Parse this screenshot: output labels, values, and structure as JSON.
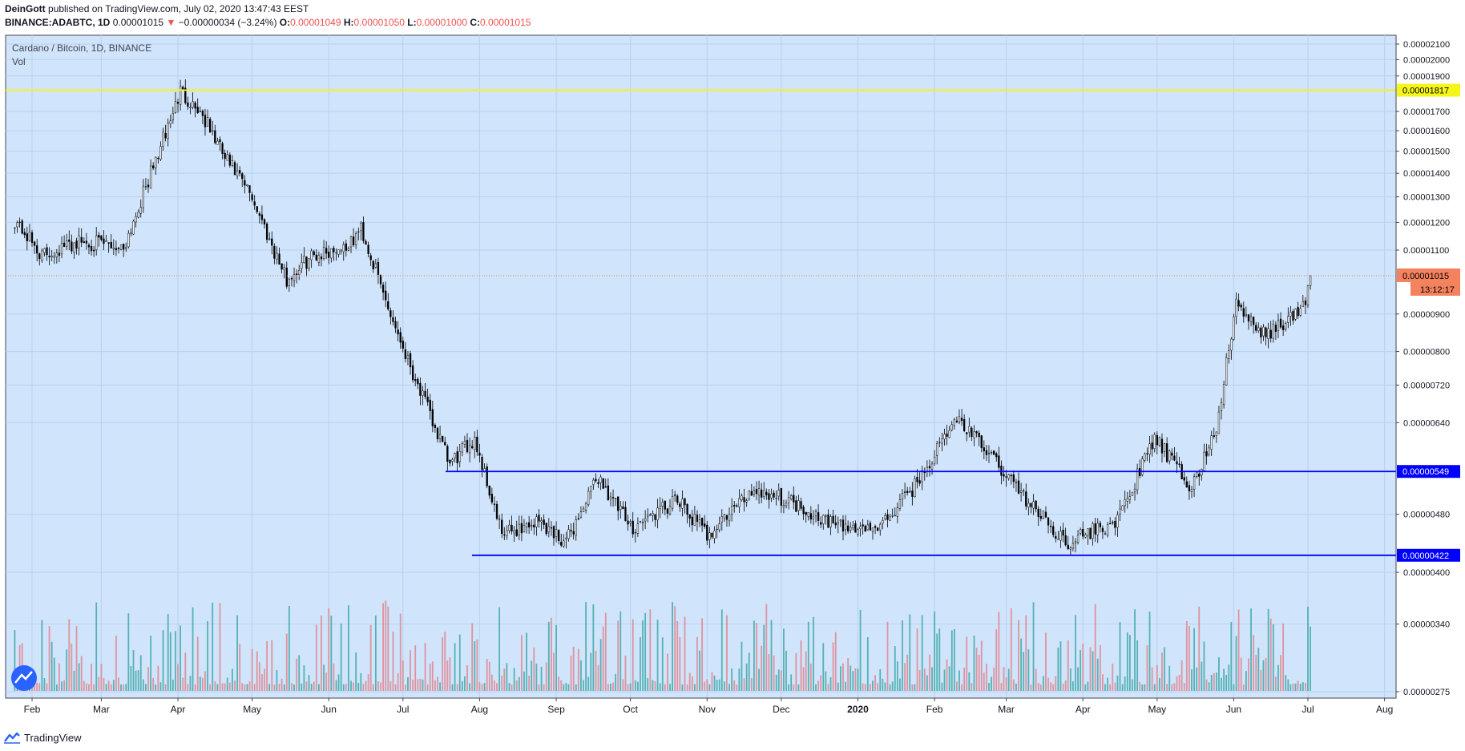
{
  "header": {
    "author": "DeinGott",
    "published_text": "published on TradingView.com, July 02, 2020 13:47:43 EEST",
    "symbol": "BINANCE:ADABTC, 1D",
    "last": "0.00001015",
    "change_arrow": "▼",
    "change": "−0.00000034 (−3.24%)",
    "o_label": "O:",
    "o_value": "0.00001049",
    "h_label": "H:",
    "h_value": "0.00001050",
    "l_label": "L:",
    "l_value": "0.00001000",
    "c_label": "C:",
    "c_value": "0.00001015"
  },
  "legend": {
    "title": "Cardano / Bitcoin, 1D, BINANCE",
    "volume_label": "Vol"
  },
  "footer": {
    "brand": "TradingView"
  },
  "colors": {
    "pane_bg": "#d0e4fb",
    "grid": "#b7d2f2",
    "candle_up": "#ffffff",
    "candle_down": "#000000",
    "vol_up": "#3fa9a6",
    "vol_down": "#e0868e",
    "yellow_line": "#f5f51a",
    "blue_line": "#0000ff",
    "last_price": "#f5825e"
  },
  "chart_data": {
    "type": "candlestick",
    "title": "Cardano / Bitcoin, 1D, BINANCE",
    "x_ticks": [
      "Feb",
      "Mar",
      "Apr",
      "May",
      "Jun",
      "Jul",
      "Aug",
      "Sep",
      "Oct",
      "Nov",
      "Dec",
      "2020",
      "Feb",
      "Mar",
      "Apr",
      "May",
      "Jun",
      "Jul",
      "Aug"
    ],
    "y_ticks": [
      "0.00002100",
      "0.00002000",
      "0.00001900",
      "0.00001700",
      "0.00001600",
      "0.00001500",
      "0.00001400",
      "0.00001300",
      "0.00001200",
      "0.00001100",
      "0.00000900",
      "0.00000800",
      "0.00000720",
      "0.00000640",
      "0.00000480",
      "0.00000400",
      "0.00000340",
      "0.00000275"
    ],
    "y_scale": "log",
    "y_range": [
      2.6e-06,
      2.2e-06
    ],
    "approx_close_path": [
      {
        "date": "2019-01-25",
        "close": 1.21e-05
      },
      {
        "date": "2019-02-05",
        "close": 1.08e-05
      },
      {
        "date": "2019-02-20",
        "close": 1.13e-05
      },
      {
        "date": "2019-03-10",
        "close": 1.11e-05
      },
      {
        "date": "2019-03-25",
        "close": 1.52e-05
      },
      {
        "date": "2019-04-02",
        "close": 1.81e-05
      },
      {
        "date": "2019-04-10",
        "close": 1.7e-05
      },
      {
        "date": "2019-04-20",
        "close": 1.47e-05
      },
      {
        "date": "2019-05-01",
        "close": 1.3e-05
      },
      {
        "date": "2019-05-15",
        "close": 1e-05
      },
      {
        "date": "2019-05-25",
        "close": 1.08e-05
      },
      {
        "date": "2019-06-10",
        "close": 1.12e-05
      },
      {
        "date": "2019-06-14",
        "close": 1.18e-05
      },
      {
        "date": "2019-06-25",
        "close": 9.2e-06
      },
      {
        "date": "2019-07-05",
        "close": 7.5e-06
      },
      {
        "date": "2019-07-20",
        "close": 5.6e-06
      },
      {
        "date": "2019-07-30",
        "close": 6.1e-06
      },
      {
        "date": "2019-08-10",
        "close": 4.5e-06
      },
      {
        "date": "2019-08-25",
        "close": 4.7e-06
      },
      {
        "date": "2019-09-05",
        "close": 4.4e-06
      },
      {
        "date": "2019-09-18",
        "close": 5.4e-06
      },
      {
        "date": "2019-10-01",
        "close": 4.6e-06
      },
      {
        "date": "2019-10-20",
        "close": 5e-06
      },
      {
        "date": "2019-11-01",
        "close": 4.5e-06
      },
      {
        "date": "2019-11-20",
        "close": 5.2e-06
      },
      {
        "date": "2019-12-05",
        "close": 5e-06
      },
      {
        "date": "2019-12-25",
        "close": 4.6e-06
      },
      {
        "date": "2020-01-10",
        "close": 4.6e-06
      },
      {
        "date": "2020-01-25",
        "close": 5.3e-06
      },
      {
        "date": "2020-02-10",
        "close": 6.5e-06
      },
      {
        "date": "2020-02-25",
        "close": 5.7e-06
      },
      {
        "date": "2020-03-12",
        "close": 4.9e-06
      },
      {
        "date": "2020-03-25",
        "close": 4.4e-06
      },
      {
        "date": "2020-04-15",
        "close": 4.7e-06
      },
      {
        "date": "2020-04-30",
        "close": 6.1e-06
      },
      {
        "date": "2020-05-15",
        "close": 5.2e-06
      },
      {
        "date": "2020-05-25",
        "close": 6.3e-06
      },
      {
        "date": "2020-06-02",
        "close": 9.3e-06
      },
      {
        "date": "2020-06-12",
        "close": 8.4e-06
      },
      {
        "date": "2020-06-25",
        "close": 8.9e-06
      },
      {
        "date": "2020-06-30",
        "close": 9.3e-06
      },
      {
        "date": "2020-07-02",
        "close": 1.015e-05
      }
    ],
    "levels": [
      {
        "price_label": "0.00001817",
        "color": "#f5f51a"
      },
      {
        "price_label": "0.00000549",
        "color": "#0000ff"
      },
      {
        "price_label": "0.00000422",
        "color": "#0000ff"
      }
    ],
    "last_price": {
      "price_label": "0.00001015",
      "countdown": "13:12:17"
    }
  }
}
